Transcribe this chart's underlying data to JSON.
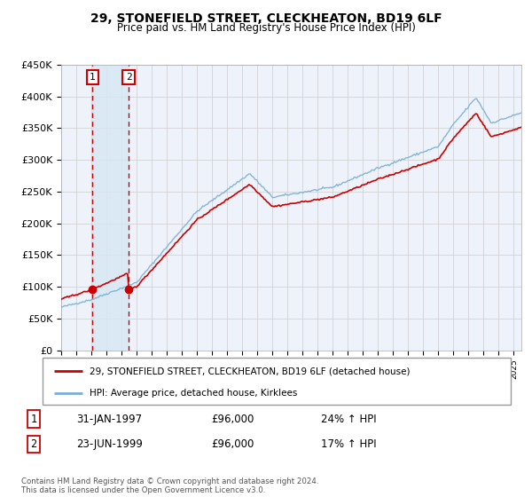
{
  "title": "29, STONEFIELD STREET, CLECKHEATON, BD19 6LF",
  "subtitle": "Price paid vs. HM Land Registry's House Price Index (HPI)",
  "red_label": "29, STONEFIELD STREET, CLECKHEATON, BD19 6LF (detached house)",
  "blue_label": "HPI: Average price, detached house, Kirklees",
  "footnote": "Contains HM Land Registry data © Crown copyright and database right 2024.\nThis data is licensed under the Open Government Licence v3.0.",
  "transactions": [
    {
      "num": 1,
      "date": "31-JAN-1997",
      "price": "£96,000",
      "hpi": "24% ↑ HPI",
      "year": 1997.08
    },
    {
      "num": 2,
      "date": "23-JUN-1999",
      "price": "£96,000",
      "hpi": "17% ↑ HPI",
      "year": 1999.47
    }
  ],
  "sale_prices": [
    96000,
    96000
  ],
  "ylim": [
    0,
    450000
  ],
  "yticks": [
    0,
    50000,
    100000,
    150000,
    200000,
    250000,
    300000,
    350000,
    400000,
    450000
  ],
  "ytick_labels": [
    "£0",
    "£50K",
    "£100K",
    "£150K",
    "£200K",
    "£250K",
    "£300K",
    "£350K",
    "£400K",
    "£450K"
  ],
  "xlim_start": 1995.0,
  "xlim_end": 2025.5,
  "background_color": "#ffffff",
  "plot_bg_color": "#eef2fa",
  "grid_color": "#cccccc",
  "red_color": "#cc0000",
  "blue_color": "#7aaed6",
  "shade_color": "#d8e8f5",
  "shade_alpha": 0.85
}
